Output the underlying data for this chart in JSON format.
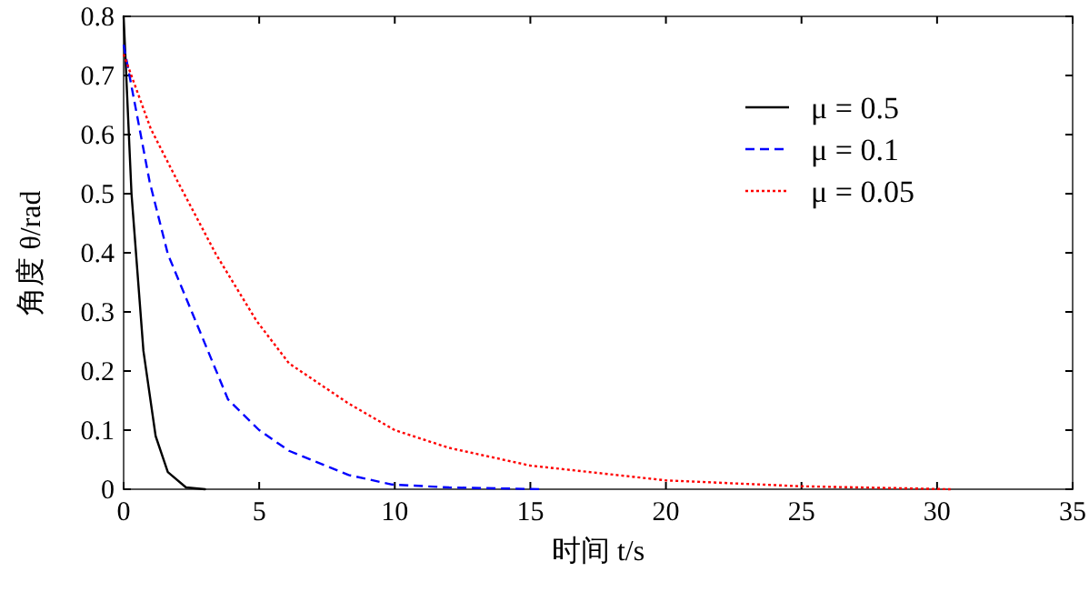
{
  "chart_data": {
    "type": "line",
    "xlabel": "时间 t/s",
    "ylabel": "角度 θ/rad",
    "xlim": [
      0,
      35
    ],
    "ylim": [
      0,
      0.8
    ],
    "xticks": [
      0,
      5,
      10,
      15,
      20,
      25,
      30,
      35
    ],
    "yticks": [
      0,
      0.1,
      0.2,
      0.3,
      0.4,
      0.5,
      0.6,
      0.7,
      0.8
    ],
    "grid": false,
    "legend": "top right",
    "series": [
      {
        "name": "μ = 0.5",
        "color": "#000000",
        "line_style": "solid",
        "x": [
          0,
          0.29,
          0.51,
          0.73,
          1.18,
          1.63,
          2.3,
          3.0
        ],
        "values": [
          0.8,
          0.5,
          0.367,
          0.234,
          0.09,
          0.029,
          0.003,
          0
        ]
      },
      {
        "name": "μ = 0.1",
        "color": "#0000ff",
        "line_style": "dashed",
        "x": [
          0,
          0.96,
          1.63,
          2.74,
          3.85,
          5,
          6.1,
          8.3,
          9.9,
          12,
          15.5
        ],
        "values": [
          0.752,
          0.52,
          0.398,
          0.275,
          0.152,
          0.1,
          0.065,
          0.024,
          0.008,
          0.003,
          0
        ]
      },
      {
        "name": "μ = 0.05",
        "color": "#ff0000",
        "line_style": "dotted",
        "x": [
          0,
          1,
          2,
          3.4,
          4.9,
          6.1,
          8.3,
          10,
          12,
          15,
          20,
          25,
          30.5
        ],
        "values": [
          0.736,
          0.61,
          0.52,
          0.398,
          0.285,
          0.213,
          0.145,
          0.1,
          0.07,
          0.04,
          0.015,
          0.005,
          0
        ]
      }
    ]
  }
}
